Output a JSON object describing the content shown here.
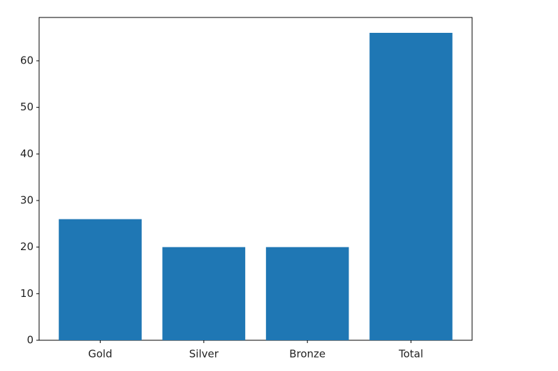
{
  "chart_data": {
    "type": "bar",
    "categories": [
      "Gold",
      "Silver",
      "Bronze",
      "Total"
    ],
    "values": [
      26,
      20,
      20,
      66
    ],
    "color": "#1f77b4",
    "ylim": [
      0,
      69.3
    ],
    "yticks": [
      0,
      10,
      20,
      30,
      40,
      50,
      60
    ],
    "grid": false
  }
}
